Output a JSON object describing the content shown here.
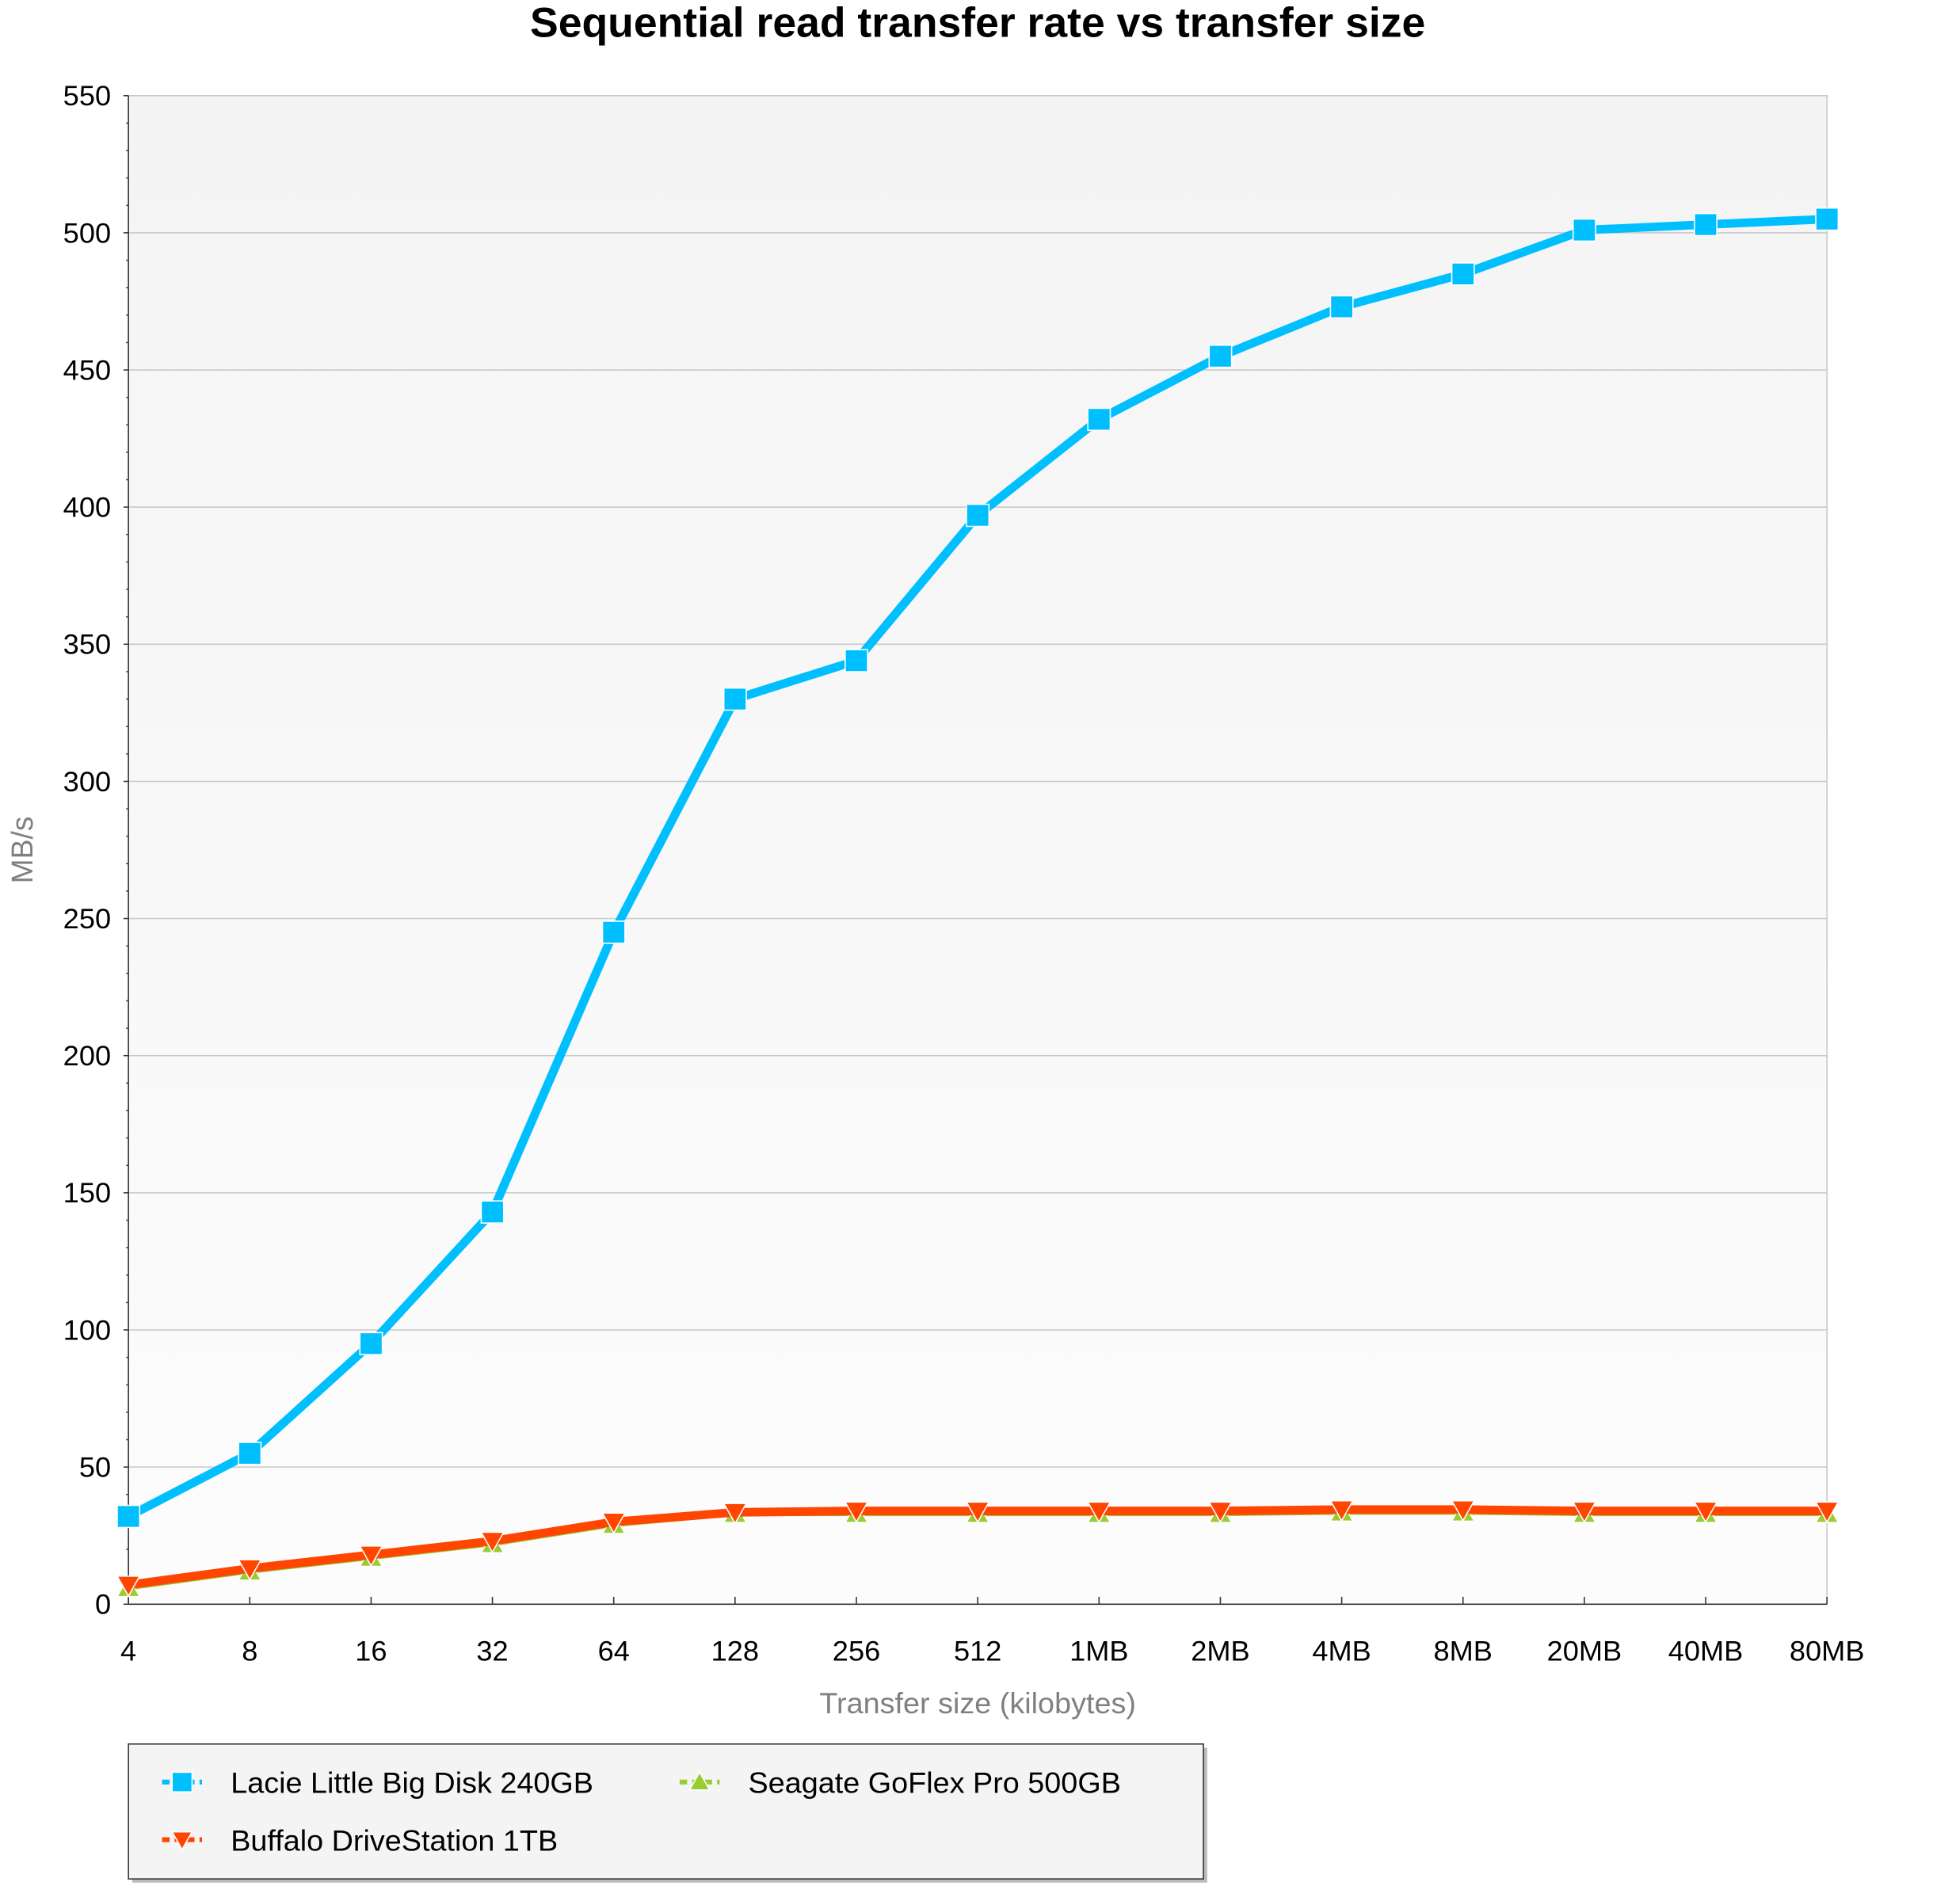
{
  "chart_data": {
    "type": "line",
    "title": "Sequential read transfer rate vs transfer size",
    "xlabel": "Transfer size (kilobytes)",
    "ylabel": "MB/s",
    "ylim": [
      0,
      550
    ],
    "yticks": [
      0,
      50,
      100,
      150,
      200,
      250,
      300,
      350,
      400,
      450,
      500,
      550
    ],
    "grid": true,
    "legend_position": "bottom-left",
    "categories": [
      "4",
      "8",
      "16",
      "32",
      "64",
      "128",
      "256",
      "512",
      "1MB",
      "2MB",
      "4MB",
      "8MB",
      "20MB",
      "40MB",
      "80MB"
    ],
    "series": [
      {
        "name": "Lacie Little Big Disk 240GB",
        "color": "#00bfff",
        "marker": "square",
        "values": [
          32,
          55,
          95,
          143,
          245,
          330,
          344,
          397,
          432,
          455,
          473,
          485,
          501,
          503,
          505
        ]
      },
      {
        "name": "Seagate GoFlex Pro 500GB",
        "color": "#99cc33",
        "marker": "triangle-up",
        "values": [
          6,
          12,
          17,
          22,
          29,
          33,
          33,
          33,
          33,
          33,
          33.5,
          33.5,
          33,
          33,
          33
        ]
      },
      {
        "name": "Buffalo DriveStation 1TB",
        "color": "#ff4500",
        "marker": "triangle-down",
        "values": [
          7,
          13,
          18,
          23,
          30,
          33.5,
          34,
          34,
          34,
          34,
          34.5,
          34.5,
          34,
          34,
          34
        ]
      }
    ]
  }
}
